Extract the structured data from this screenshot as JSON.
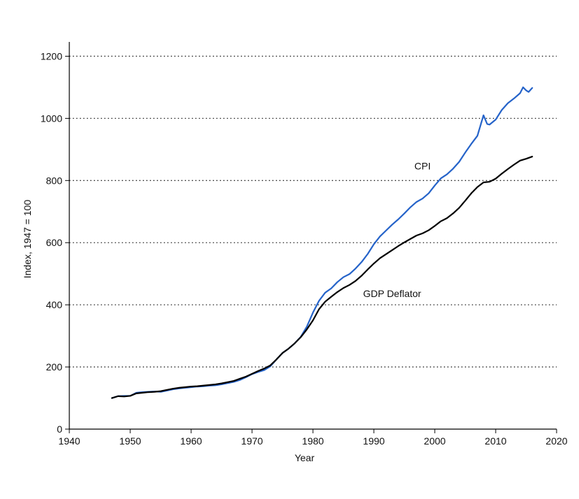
{
  "chart_data": {
    "type": "line",
    "title": "",
    "xlabel": "Year",
    "ylabel": "Index, 1947 = 100",
    "xlim": [
      1940,
      2020
    ],
    "ylim": [
      0,
      1200
    ],
    "x_ticks": [
      1940,
      1950,
      1960,
      1970,
      1980,
      1990,
      2000,
      2010,
      2020
    ],
    "y_ticks": [
      0,
      200,
      400,
      600,
      800,
      1000,
      1200
    ],
    "grid": "horizontal dotted",
    "legend": "inline labels",
    "series": [
      {
        "name": "CPI",
        "color": "#2563c9",
        "label_at": [
          1998,
          835
        ],
        "points": [
          [
            1947,
            100
          ],
          [
            1948,
            106
          ],
          [
            1949,
            107
          ],
          [
            1950,
            107
          ],
          [
            1951,
            117
          ],
          [
            1952,
            119
          ],
          [
            1953,
            120
          ],
          [
            1954,
            121
          ],
          [
            1955,
            120
          ],
          [
            1956,
            124
          ],
          [
            1957,
            128
          ],
          [
            1958,
            131
          ],
          [
            1959,
            133
          ],
          [
            1960,
            135
          ],
          [
            1961,
            137
          ],
          [
            1962,
            138
          ],
          [
            1963,
            140
          ],
          [
            1964,
            141
          ],
          [
            1965,
            144
          ],
          [
            1966,
            148
          ],
          [
            1967,
            152
          ],
          [
            1968,
            158
          ],
          [
            1969,
            167
          ],
          [
            1970,
            177
          ],
          [
            1971,
            184
          ],
          [
            1972,
            190
          ],
          [
            1973,
            202
          ],
          [
            1974,
            224
          ],
          [
            1975,
            245
          ],
          [
            1976,
            259
          ],
          [
            1977,
            276
          ],
          [
            1978,
            297
          ],
          [
            1979,
            330
          ],
          [
            1980,
            375
          ],
          [
            1981,
            413
          ],
          [
            1982,
            439
          ],
          [
            1983,
            453
          ],
          [
            1984,
            473
          ],
          [
            1985,
            489
          ],
          [
            1986,
            499
          ],
          [
            1987,
            517
          ],
          [
            1988,
            538
          ],
          [
            1989,
            564
          ],
          [
            1990,
            595
          ],
          [
            1991,
            620
          ],
          [
            1992,
            639
          ],
          [
            1993,
            658
          ],
          [
            1994,
            675
          ],
          [
            1995,
            694
          ],
          [
            1996,
            714
          ],
          [
            1997,
            731
          ],
          [
            1998,
            742
          ],
          [
            1999,
            759
          ],
          [
            2000,
            784
          ],
          [
            2001,
            807
          ],
          [
            2002,
            820
          ],
          [
            2003,
            838
          ],
          [
            2004,
            860
          ],
          [
            2005,
            890
          ],
          [
            2006,
            918
          ],
          [
            2007,
            944
          ],
          [
            2008,
            1010
          ],
          [
            2008.6,
            982
          ],
          [
            2009,
            980
          ],
          [
            2010,
            996
          ],
          [
            2011,
            1027
          ],
          [
            2012,
            1049
          ],
          [
            2013,
            1064
          ],
          [
            2014,
            1081
          ],
          [
            2014.5,
            1100
          ],
          [
            2015,
            1090
          ],
          [
            2015.4,
            1085
          ],
          [
            2016,
            1098
          ]
        ]
      },
      {
        "name": "GDP Deflator",
        "color": "#000000",
        "label_at": [
          1993,
          425
        ],
        "points": [
          [
            1947,
            100
          ],
          [
            1948,
            106
          ],
          [
            1949,
            105
          ],
          [
            1950,
            107
          ],
          [
            1951,
            115
          ],
          [
            1952,
            117
          ],
          [
            1953,
            119
          ],
          [
            1954,
            120
          ],
          [
            1955,
            122
          ],
          [
            1956,
            126
          ],
          [
            1957,
            130
          ],
          [
            1958,
            133
          ],
          [
            1959,
            135
          ],
          [
            1960,
            137
          ],
          [
            1961,
            138
          ],
          [
            1962,
            140
          ],
          [
            1963,
            142
          ],
          [
            1964,
            144
          ],
          [
            1965,
            147
          ],
          [
            1966,
            151
          ],
          [
            1967,
            155
          ],
          [
            1968,
            162
          ],
          [
            1969,
            169
          ],
          [
            1970,
            178
          ],
          [
            1971,
            187
          ],
          [
            1972,
            195
          ],
          [
            1973,
            205
          ],
          [
            1974,
            224
          ],
          [
            1975,
            245
          ],
          [
            1976,
            259
          ],
          [
            1977,
            276
          ],
          [
            1978,
            296
          ],
          [
            1979,
            321
          ],
          [
            1980,
            350
          ],
          [
            1981,
            386
          ],
          [
            1982,
            410
          ],
          [
            1983,
            426
          ],
          [
            1984,
            441
          ],
          [
            1985,
            454
          ],
          [
            1986,
            464
          ],
          [
            1987,
            477
          ],
          [
            1988,
            494
          ],
          [
            1989,
            514
          ],
          [
            1990,
            533
          ],
          [
            1991,
            550
          ],
          [
            1992,
            563
          ],
          [
            1993,
            576
          ],
          [
            1994,
            589
          ],
          [
            1995,
            601
          ],
          [
            1996,
            612
          ],
          [
            1997,
            623
          ],
          [
            1998,
            630
          ],
          [
            1999,
            640
          ],
          [
            2000,
            654
          ],
          [
            2001,
            669
          ],
          [
            2002,
            679
          ],
          [
            2003,
            694
          ],
          [
            2004,
            712
          ],
          [
            2005,
            735
          ],
          [
            2006,
            759
          ],
          [
            2007,
            779
          ],
          [
            2008,
            794
          ],
          [
            2009,
            796
          ],
          [
            2010,
            806
          ],
          [
            2011,
            822
          ],
          [
            2012,
            837
          ],
          [
            2013,
            851
          ],
          [
            2014,
            864
          ],
          [
            2015,
            870
          ],
          [
            2016,
            877
          ]
        ]
      }
    ]
  }
}
